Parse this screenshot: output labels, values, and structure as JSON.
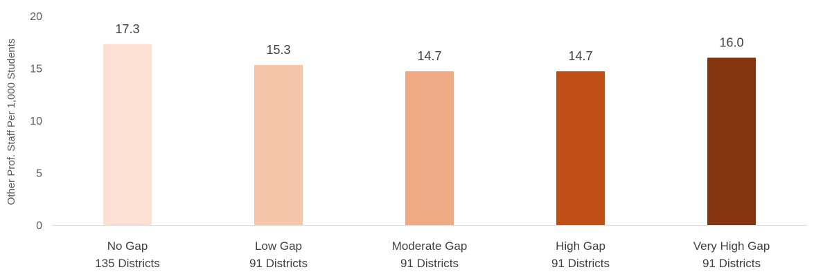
{
  "chart_data": {
    "type": "bar",
    "ylabel": "Other Prof. Staff Per 1,000 Students",
    "xlabel": "",
    "ylim": [
      0,
      20
    ],
    "yticks": [
      0,
      5,
      10,
      15,
      20
    ],
    "grid": false,
    "categories": [
      {
        "name": "No Gap",
        "sub": "135 Districts"
      },
      {
        "name": "Low Gap",
        "sub": "91 Districts"
      },
      {
        "name": "Moderate Gap",
        "sub": "91 Districts"
      },
      {
        "name": "High Gap",
        "sub": "91 Districts"
      },
      {
        "name": "Very High Gap",
        "sub": "91 Districts"
      }
    ],
    "values": [
      17.3,
      15.3,
      14.7,
      14.7,
      16.0
    ],
    "value_labels": [
      "17.3",
      "15.3",
      "14.7",
      "14.7",
      "16.0"
    ],
    "colors": [
      "#fbe0d3",
      "#f5c5aa",
      "#f0a985",
      "#c04f17",
      "#843510"
    ]
  }
}
